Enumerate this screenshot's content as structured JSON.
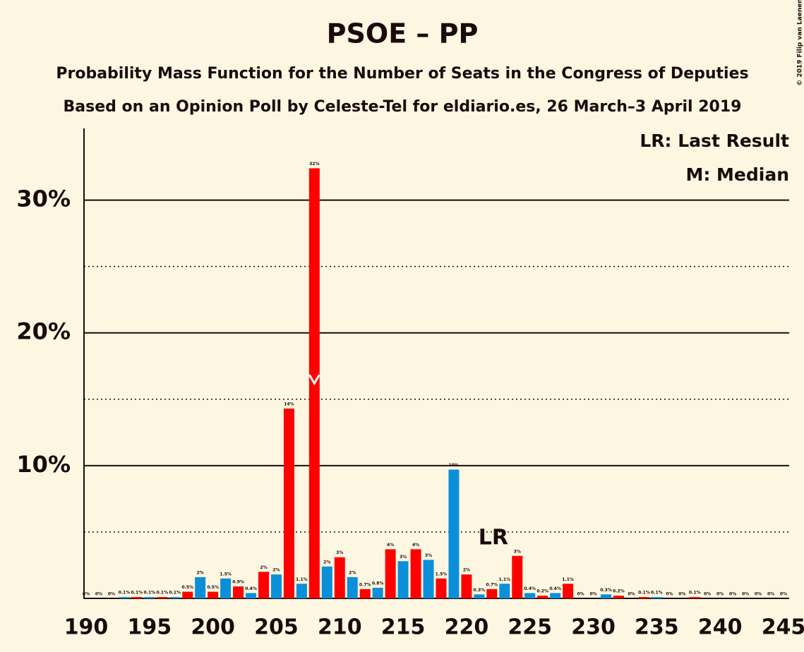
{
  "chart_data": {
    "type": "bar",
    "title": "PSOE – PP",
    "subtitle": "Probability Mass Function for the Number of Seats in the Congress of Deputies",
    "subtitle2": "Based on an Opinion Poll by Celeste-Tel for eldiario.es, 26 March–3 April 2019",
    "credit": "© 2019 Filip van Laenen",
    "legend_texts": [
      "LR: Last Result",
      "M: Median"
    ],
    "categories": [
      190,
      191,
      192,
      193,
      194,
      195,
      196,
      197,
      198,
      199,
      200,
      201,
      202,
      203,
      204,
      205,
      206,
      207,
      208,
      209,
      210,
      211,
      212,
      213,
      214,
      215,
      216,
      217,
      218,
      219,
      220,
      221,
      222,
      223,
      224,
      225,
      226,
      227,
      228,
      229,
      230,
      231,
      232,
      233,
      234,
      235,
      236,
      237,
      238,
      239,
      240,
      241,
      242,
      243,
      244,
      245
    ],
    "values": [
      0,
      0,
      0,
      0.1,
      0.1,
      0.1,
      0.1,
      0.1,
      0.5,
      1.6,
      0.5,
      1.5,
      0.9,
      0.4,
      2.0,
      1.8,
      14.3,
      1.1,
      32.4,
      2.4,
      3.1,
      1.6,
      0.7,
      0.8,
      3.7,
      2.8,
      3.7,
      2.9,
      1.5,
      9.7,
      1.8,
      0.3,
      0.7,
      1.1,
      3.2,
      0.4,
      0.2,
      0.4,
      1.1,
      0,
      0,
      0.3,
      0.2,
      0,
      0.1,
      0.1,
      0,
      0,
      0.1,
      0,
      0,
      0,
      0,
      0,
      0,
      0
    ],
    "value_labels": [
      "0%",
      "0%",
      "0%",
      "0.1%",
      "0.1%",
      "0.1%",
      "0.1%",
      "0.1%",
      "0.5%",
      "2%",
      "0.5%",
      "1.5%",
      "0.9%",
      "0.4%",
      "2%",
      "2%",
      "14%",
      "1.1%",
      "32%",
      "2%",
      "3%",
      "2%",
      "0.7%",
      "0.8%",
      "4%",
      "3%",
      "4%",
      "3%",
      "1.5%",
      "10%",
      "2%",
      "0.3%",
      "0.7%",
      "1.1%",
      "3%",
      "0.4%",
      "0.2%",
      "0.4%",
      "1.1%",
      "0%",
      "0%",
      "0.3%",
      "0.2%",
      "0%",
      "0.1%",
      "0.1%",
      "0%",
      "0%",
      "0.1%",
      "0%",
      "0%",
      "0%",
      "0%",
      "0%",
      "0%",
      "0%"
    ],
    "colors": [
      "#ff0000",
      "#0b8fd9",
      "#ff0000",
      "#0b8fd9",
      "#ff0000",
      "#0b8fd9",
      "#ff0000",
      "#0b8fd9",
      "#ff0000",
      "#0b8fd9",
      "#ff0000",
      "#0b8fd9",
      "#ff0000",
      "#0b8fd9",
      "#ff0000",
      "#0b8fd9",
      "#ff0000",
      "#0b8fd9",
      "#ff0000",
      "#0b8fd9",
      "#ff0000",
      "#0b8fd9",
      "#ff0000",
      "#0b8fd9",
      "#ff0000",
      "#0b8fd9",
      "#ff0000",
      "#0b8fd9",
      "#ff0000",
      "#0b8fd9",
      "#ff0000",
      "#0b8fd9",
      "#ff0000",
      "#0b8fd9",
      "#ff0000",
      "#0b8fd9",
      "#ff0000",
      "#0b8fd9",
      "#ff0000",
      "#0b8fd9",
      "#ff0000",
      "#0b8fd9",
      "#ff0000",
      "#0b8fd9",
      "#ff0000",
      "#0b8fd9",
      "#ff0000",
      "#0b8fd9",
      "#ff0000",
      "#0b8fd9",
      "#ff0000",
      "#0b8fd9",
      "#ff0000",
      "#0b8fd9",
      "#ff0000",
      "#0b8fd9"
    ],
    "xlim": [
      190,
      245
    ],
    "xticks": [
      190,
      195,
      200,
      205,
      210,
      215,
      220,
      225,
      230,
      235,
      240,
      245
    ],
    "ylim": [
      0,
      35.4
    ],
    "yticks": [
      {
        "value": 10,
        "label": "10%"
      },
      {
        "value": 20,
        "label": "20%"
      },
      {
        "value": 30,
        "label": "30%"
      }
    ],
    "minor_yticks": [
      5,
      15,
      25
    ],
    "annotations": [
      {
        "text": "LR",
        "x": 222
      }
    ],
    "median": 208
  }
}
